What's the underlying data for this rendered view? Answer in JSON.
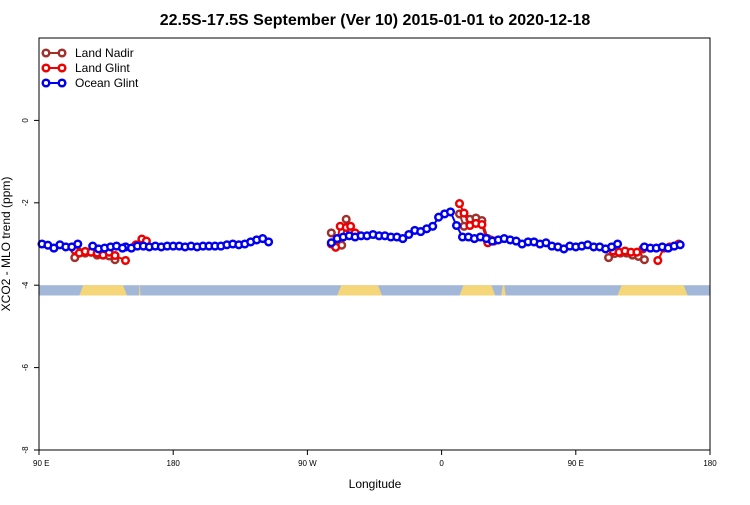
{
  "chart_data": {
    "type": "line",
    "title": "22.5S-17.5S September (Ver 10)   2015-01-01 to 2020-12-18",
    "xlabel": "Longitude",
    "ylabel": "XCO2 - MLO trend (ppm)",
    "xlim": [
      90,
      540
    ],
    "ylim": [
      -8,
      2
    ],
    "x_ticks": [
      {
        "value": 90,
        "label": "90 E"
      },
      {
        "value": 180,
        "label": "180"
      },
      {
        "value": 270,
        "label": "90 W"
      },
      {
        "value": 360,
        "label": "0"
      },
      {
        "value": 450,
        "label": "90 E"
      },
      {
        "value": 540,
        "label": "180"
      }
    ],
    "y_ticks": [
      {
        "value": 0,
        "label": "0"
      },
      {
        "value": -2,
        "label": "-2"
      },
      {
        "value": -4,
        "label": "-4"
      },
      {
        "value": -6,
        "label": "-6"
      },
      {
        "value": -8,
        "label": "-8"
      }
    ],
    "legend_position": "top-left",
    "grid": false,
    "land_ocean_band": {
      "y_top": -4.0,
      "y_bottom": -4.25,
      "ocean_color": "#a3b8d9",
      "land_color": "#f5d77a",
      "land_segments": [
        [
          117,
          149
        ],
        [
          157,
          158
        ],
        [
          290,
          320
        ],
        [
          372,
          396
        ],
        [
          400,
          403
        ],
        [
          478,
          525
        ]
      ]
    },
    "series": [
      {
        "name": "Land Nadir",
        "color": "#a0302c",
        "segments": [
          [
            [
              114,
              -3.33
            ],
            [
              117,
              -3.2
            ],
            [
              121,
              -3.22
            ],
            [
              125,
              -3.2
            ],
            [
              129,
              -3.27
            ],
            [
              133,
              -3.27
            ],
            [
              137,
              -3.29
            ],
            [
              141,
              -3.38
            ]
          ],
          [
            [
              286,
              -2.73
            ],
            [
              290,
              -3.0
            ],
            [
              293,
              -3.03
            ],
            [
              296,
              -2.4
            ],
            [
              299,
              -2.7
            ],
            [
              303,
              -2.77
            ]
          ],
          [
            [
              372,
              -2.27
            ],
            [
              375,
              -2.57
            ],
            [
              379,
              -2.4
            ],
            [
              383,
              -2.37
            ],
            [
              387,
              -2.43
            ],
            [
              391,
              -2.87
            ],
            [
              393,
              -2.9
            ]
          ],
          [
            [
              472,
              -3.33
            ],
            [
              476,
              -3.23
            ],
            [
              480,
              -3.22
            ],
            [
              484,
              -3.22
            ],
            [
              488,
              -3.27
            ],
            [
              492,
              -3.3
            ],
            [
              496,
              -3.38
            ]
          ]
        ]
      },
      {
        "name": "Land Glint",
        "color": "#ee0000",
        "segments": [
          [
            [
              114,
              -3.15
            ],
            [
              117,
              -3.22
            ],
            [
              121,
              -3.18
            ],
            [
              125,
              -3.2
            ],
            [
              129,
              -3.22
            ],
            [
              133,
              -3.27
            ],
            [
              137,
              -3.2
            ],
            [
              141,
              -3.28
            ],
            [
              148,
              -3.4
            ]
          ],
          [
            [
              155,
              -3.02
            ],
            [
              159,
              -2.88
            ],
            [
              162,
              -2.93
            ]
          ],
          [
            [
              286,
              -3.0
            ],
            [
              289,
              -3.08
            ],
            [
              292,
              -2.57
            ],
            [
              296,
              -2.6
            ],
            [
              299,
              -2.57
            ],
            [
              302,
              -2.73
            ]
          ],
          [
            [
              372,
              -2.02
            ],
            [
              375,
              -2.25
            ],
            [
              379,
              -2.55
            ],
            [
              383,
              -2.5
            ],
            [
              387,
              -2.53
            ],
            [
              391,
              -2.97
            ],
            [
              395,
              -2.93
            ]
          ],
          [
            [
              475,
              -3.17
            ],
            [
              479,
              -3.2
            ],
            [
              483,
              -3.17
            ],
            [
              487,
              -3.2
            ],
            [
              491,
              -3.2
            ],
            [
              495,
              -3.12
            ]
          ],
          [
            [
              505,
              -3.4
            ],
            [
              509,
              -3.1
            ],
            [
              513,
              -3.07
            ],
            [
              519,
              -3.0
            ]
          ]
        ]
      },
      {
        "name": "Ocean Glint",
        "color": "#0000ee",
        "segments": [
          [
            [
              92,
              -3.0
            ],
            [
              96,
              -3.03
            ],
            [
              100,
              -3.1
            ],
            [
              104,
              -3.02
            ],
            [
              108,
              -3.07
            ],
            [
              112,
              -3.07
            ],
            [
              116,
              -3.0
            ]
          ],
          [
            [
              148,
              -3.07
            ],
            [
              152,
              -3.1
            ],
            [
              156,
              -3.05
            ],
            [
              160,
              -3.05
            ],
            [
              164,
              -3.07
            ],
            [
              168,
              -3.05
            ],
            [
              172,
              -3.07
            ],
            [
              176,
              -3.05
            ],
            [
              180,
              -3.05
            ],
            [
              184,
              -3.05
            ],
            [
              188,
              -3.07
            ],
            [
              192,
              -3.05
            ],
            [
              196,
              -3.07
            ],
            [
              200,
              -3.05
            ],
            [
              204,
              -3.05
            ],
            [
              208,
              -3.05
            ],
            [
              212,
              -3.05
            ],
            [
              216,
              -3.02
            ],
            [
              220,
              -3.0
            ],
            [
              224,
              -3.02
            ],
            [
              228,
              -3.0
            ],
            [
              232,
              -2.95
            ],
            [
              236,
              -2.9
            ],
            [
              240,
              -2.87
            ],
            [
              244,
              -2.95
            ]
          ],
          [
            [
              286,
              -2.97
            ],
            [
              290,
              -2.87
            ],
            [
              294,
              -2.83
            ],
            [
              298,
              -2.8
            ],
            [
              302,
              -2.83
            ],
            [
              306,
              -2.8
            ],
            [
              310,
              -2.8
            ],
            [
              314,
              -2.77
            ],
            [
              318,
              -2.8
            ],
            [
              322,
              -2.8
            ],
            [
              326,
              -2.83
            ],
            [
              330,
              -2.83
            ],
            [
              334,
              -2.87
            ],
            [
              338,
              -2.77
            ],
            [
              342,
              -2.67
            ],
            [
              346,
              -2.7
            ],
            [
              350,
              -2.63
            ],
            [
              354,
              -2.57
            ],
            [
              358,
              -2.35
            ],
            [
              362,
              -2.27
            ],
            [
              366,
              -2.22
            ],
            [
              370,
              -2.55
            ],
            [
              374,
              -2.83
            ],
            [
              378,
              -2.83
            ],
            [
              382,
              -2.87
            ],
            [
              386,
              -2.83
            ],
            [
              390,
              -2.87
            ],
            [
              394,
              -2.93
            ],
            [
              398,
              -2.9
            ],
            [
              402,
              -2.87
            ],
            [
              406,
              -2.9
            ],
            [
              410,
              -2.93
            ],
            [
              414,
              -3.0
            ]
          ],
          [
            [
              126,
              -3.05
            ],
            [
              130,
              -3.12
            ],
            [
              134,
              -3.1
            ],
            [
              138,
              -3.07
            ],
            [
              142,
              -3.05
            ],
            [
              146,
              -3.1
            ]
          ],
          [
            [
              418,
              -2.95
            ],
            [
              422,
              -2.95
            ],
            [
              426,
              -3.0
            ],
            [
              430,
              -2.97
            ],
            [
              434,
              -3.05
            ],
            [
              438,
              -3.07
            ],
            [
              442,
              -3.12
            ],
            [
              446,
              -3.05
            ],
            [
              450,
              -3.07
            ],
            [
              454,
              -3.05
            ],
            [
              458,
              -3.02
            ],
            [
              462,
              -3.07
            ],
            [
              466,
              -3.07
            ],
            [
              470,
              -3.12
            ],
            [
              474,
              -3.07
            ],
            [
              478,
              -3.0
            ]
          ],
          [
            [
              496,
              -3.07
            ],
            [
              500,
              -3.1
            ],
            [
              504,
              -3.1
            ],
            [
              508,
              -3.07
            ],
            [
              512,
              -3.1
            ],
            [
              516,
              -3.05
            ],
            [
              520,
              -3.02
            ]
          ]
        ]
      }
    ]
  }
}
